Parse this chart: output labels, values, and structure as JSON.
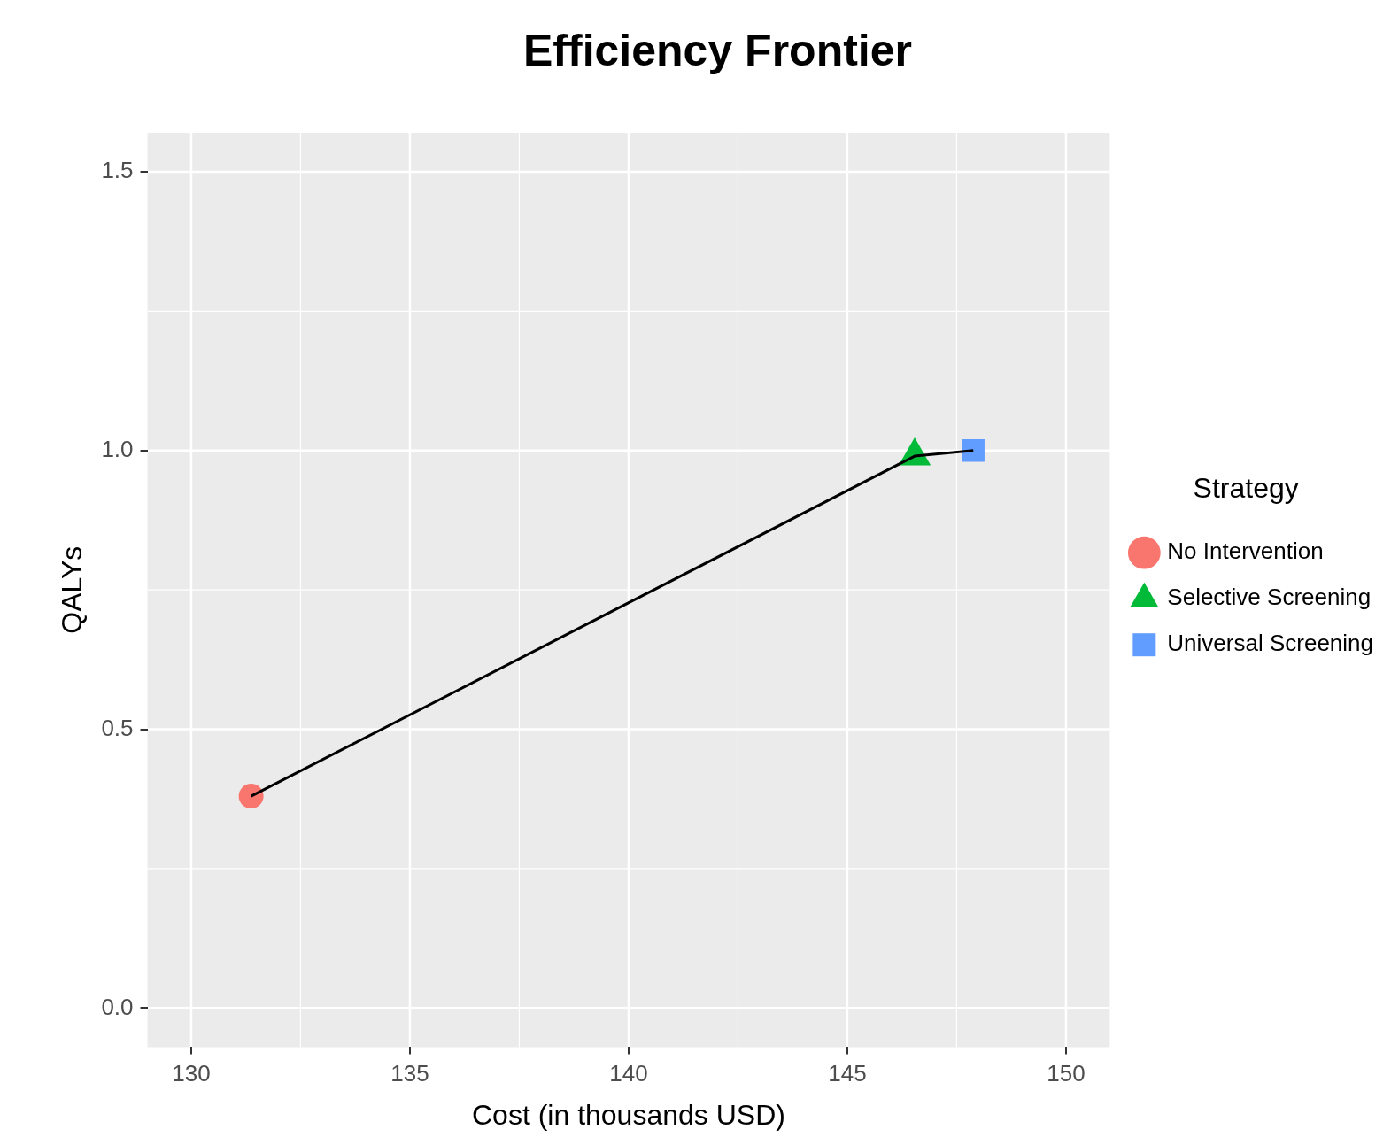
{
  "chart_data": {
    "type": "scatter",
    "title": "Efficiency Frontier",
    "xlabel": "Cost (in thousands USD)",
    "ylabel": "QALYs",
    "legend_title": "Strategy",
    "legend": "right",
    "grid": true,
    "xlim": [
      129.0,
      151.0
    ],
    "xticks": [
      130,
      135,
      140,
      145,
      150
    ],
    "ylim": [
      -0.07,
      1.57
    ],
    "yticks": [
      {
        "value": 0,
        "label": "0.0"
      },
      0.5,
      {
        "value": 1,
        "label": "1.0"
      },
      1.5
    ],
    "series": [
      {
        "type": "line",
        "color": "#000000",
        "marker": "none",
        "line_style": "solid",
        "x": [
          131.37,
          146.54,
          147.88
        ],
        "values": [
          0.38,
          0.99,
          1.0
        ]
      },
      {
        "name": "No Intervention",
        "color": "#f8766d",
        "marker": "circle",
        "x": [
          131.37
        ],
        "values": [
          0.38
        ]
      },
      {
        "name": "Selective Screening",
        "color": "#00ba38",
        "marker": "triangle",
        "x": [
          146.54
        ],
        "values": [
          0.99
        ]
      },
      {
        "name": "Universal Screening",
        "color": "#619cff",
        "marker": "square",
        "x": [
          147.88
        ],
        "values": [
          1.0
        ]
      }
    ]
  }
}
